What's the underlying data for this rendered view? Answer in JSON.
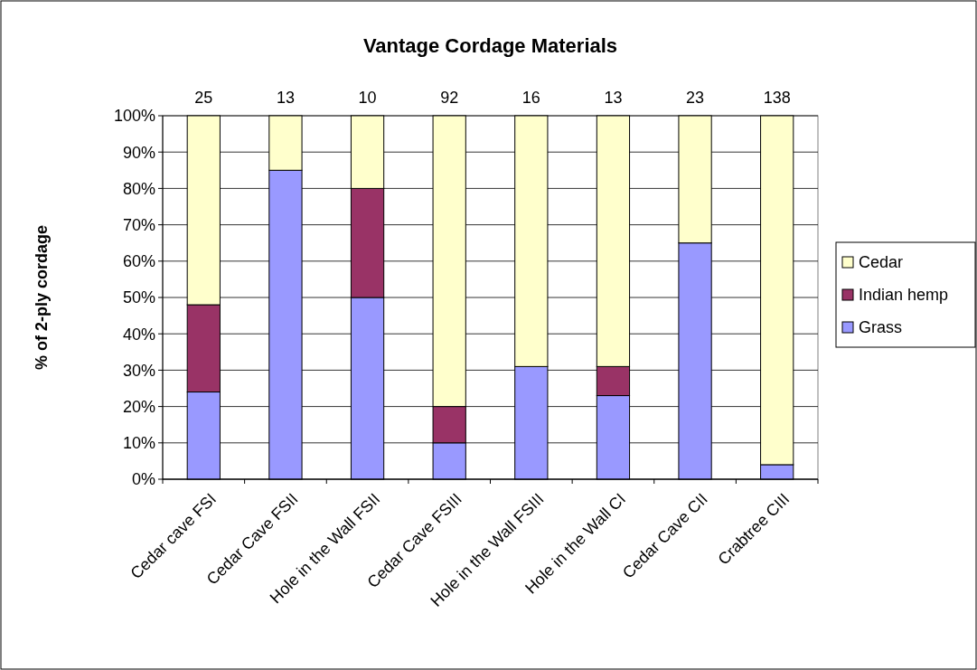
{
  "chart_data": {
    "type": "bar",
    "title": "Vantage Cordage Materials",
    "ylabel": "% of 2-ply cordage",
    "categories": [
      "Cedar cave FSI",
      "Cedar Cave FSII",
      "Hole in the Wall FSII",
      "Cedar Cave FSIII",
      "Hole in the Wall FSIII",
      "Hole in the Wall CI",
      "Cedar Cave CII",
      "Crabtree CIII"
    ],
    "stacked": true,
    "series": [
      {
        "name": "Grass",
        "color": "#9999ff",
        "values": [
          24,
          85,
          50,
          10,
          31,
          23,
          65,
          4
        ]
      },
      {
        "name": "Indian hemp",
        "color": "#993366",
        "values": [
          24,
          0,
          30,
          10,
          0,
          8,
          0,
          0
        ]
      },
      {
        "name": "Cedar",
        "color": "#ffffcc",
        "values": [
          52,
          15,
          20,
          80,
          69,
          69,
          35,
          96
        ]
      }
    ],
    "ylim": [
      0,
      100
    ],
    "yticks": [
      {
        "value": 0,
        "label": "0%"
      },
      {
        "value": 10,
        "label": "10%"
      },
      {
        "value": 20,
        "label": "20%"
      },
      {
        "value": 30,
        "label": "30%"
      },
      {
        "value": 40,
        "label": "40%"
      },
      {
        "value": 50,
        "label": "50%"
      },
      {
        "value": 60,
        "label": "60%"
      },
      {
        "value": 70,
        "label": "70%"
      },
      {
        "value": 80,
        "label": "80%"
      },
      {
        "value": 90,
        "label": "90%"
      },
      {
        "value": 100,
        "label": "100%"
      }
    ],
    "annotations": [
      {
        "text": "25",
        "x": "Cedar cave FSI",
        "y": 100
      },
      {
        "text": "13",
        "x": "Cedar Cave FSII",
        "y": 100
      },
      {
        "text": "10",
        "x": "Hole in the Wall FSII",
        "y": 100
      },
      {
        "text": "92",
        "x": "Cedar Cave FSIII",
        "y": 100
      },
      {
        "text": "16",
        "x": "Hole in the Wall FSIII",
        "y": 100
      },
      {
        "text": "13",
        "x": "Hole in the Wall CI",
        "y": 100
      },
      {
        "text": "23",
        "x": "Cedar Cave CII",
        "y": 100
      },
      {
        "text": "138",
        "x": "Crabtree CIII",
        "y": 100
      }
    ],
    "grid": "y",
    "legend": "right"
  }
}
